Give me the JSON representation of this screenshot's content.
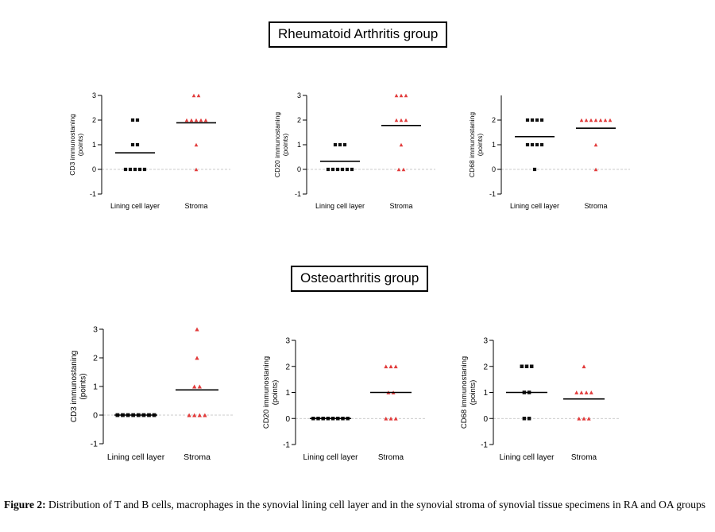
{
  "groups": {
    "ra_title": "Rheumatoid Arthritis group",
    "oa_title": "Osteoarthritis group"
  },
  "caption": {
    "label": "Figure 2:",
    "text": " Distribution of T and B cells, macrophages in the synovial lining cell layer and in the synovial stroma of synovial tissue specimens in RA and OA groups"
  },
  "colors": {
    "lining": "#111111",
    "stroma": "#e23b3b",
    "zero_line": "#bbbbbb"
  },
  "chart_data": [
    {
      "type": "scatter",
      "group": "Rheumatoid Arthritis group",
      "ylabel": "CD3 immunostaning (points)",
      "ylim": [
        -1,
        3
      ],
      "yticks": [
        -1,
        0,
        1,
        2,
        3
      ],
      "categories": [
        "Lining cell layer",
        "Stroma"
      ],
      "series": [
        {
          "name": "Lining cell layer",
          "marker": "square",
          "values": [
            0,
            0,
            0,
            0,
            0,
            1,
            1,
            2,
            2
          ],
          "mean": 0.67
        },
        {
          "name": "Stroma",
          "marker": "triangle",
          "values": [
            0,
            1,
            2,
            2,
            2,
            2,
            2,
            3,
            3
          ],
          "mean": 1.89
        }
      ]
    },
    {
      "type": "scatter",
      "group": "Rheumatoid Arthritis group",
      "ylabel": "CD20 immunostaning (points)",
      "ylim": [
        -1,
        3
      ],
      "yticks": [
        -1,
        0,
        1,
        2,
        3
      ],
      "categories": [
        "Lining cell layer",
        "Stroma"
      ],
      "series": [
        {
          "name": "Lining cell layer",
          "marker": "square",
          "values": [
            0,
            0,
            0,
            0,
            0,
            0,
            1,
            1,
            1
          ],
          "mean": 0.33
        },
        {
          "name": "Stroma",
          "marker": "triangle",
          "values": [
            0,
            0,
            1,
            2,
            2,
            2,
            3,
            3,
            3
          ],
          "mean": 1.78
        }
      ]
    },
    {
      "type": "scatter",
      "group": "Rheumatoid Arthritis group",
      "ylabel": "CD68 immunostaning (points)",
      "ylim": [
        -1,
        3
      ],
      "yticks": [
        -1,
        0,
        1,
        2
      ],
      "categories": [
        "Lining cell layer",
        "Stroma"
      ],
      "series": [
        {
          "name": "Lining cell layer",
          "marker": "square",
          "values": [
            0,
            1,
            1,
            1,
            1,
            2,
            2,
            2,
            2
          ],
          "mean": 1.33
        },
        {
          "name": "Stroma",
          "marker": "triangle",
          "values": [
            0,
            1,
            2,
            2,
            2,
            2,
            2,
            2,
            2
          ],
          "mean": 1.67
        }
      ]
    },
    {
      "type": "scatter",
      "group": "Osteoarthritis group",
      "ylabel": "CD3 immunostaning (points)",
      "ylim": [
        -1,
        3
      ],
      "yticks": [
        -1,
        0,
        1,
        2,
        3
      ],
      "categories": [
        "Lining cell layer",
        "Stroma"
      ],
      "series": [
        {
          "name": "Lining cell layer",
          "marker": "square",
          "values": [
            0,
            0,
            0,
            0,
            0,
            0,
            0,
            0
          ],
          "mean": 0
        },
        {
          "name": "Stroma",
          "marker": "triangle",
          "values": [
            0,
            0,
            0,
            0,
            1,
            1,
            2,
            3
          ],
          "mean": 0.88
        }
      ]
    },
    {
      "type": "scatter",
      "group": "Osteoarthritis group",
      "ylabel": "CD20 immunostaning (points)",
      "ylim": [
        -1,
        3
      ],
      "yticks": [
        -1,
        0,
        1,
        2,
        3
      ],
      "categories": [
        "Lining cell layer",
        "Stroma"
      ],
      "series": [
        {
          "name": "Lining cell layer",
          "marker": "square",
          "values": [
            0,
            0,
            0,
            0,
            0,
            0,
            0,
            0
          ],
          "mean": 0
        },
        {
          "name": "Stroma",
          "marker": "triangle",
          "values": [
            0,
            0,
            0,
            1,
            1,
            2,
            2,
            2
          ],
          "mean": 1
        }
      ]
    },
    {
      "type": "scatter",
      "group": "Osteoarthritis group",
      "ylabel": "CD68 immunostaning (points)",
      "ylim": [
        -1,
        3
      ],
      "yticks": [
        -1,
        0,
        1,
        2,
        3
      ],
      "categories": [
        "Lining cell layer",
        "Stroma"
      ],
      "series": [
        {
          "name": "Lining cell layer",
          "marker": "square",
          "values": [
            0,
            0,
            1,
            1,
            2,
            2,
            2
          ],
          "mean": 1
        },
        {
          "name": "Stroma",
          "marker": "triangle",
          "values": [
            0,
            0,
            0,
            1,
            1,
            1,
            1,
            2
          ],
          "mean": 0.75
        }
      ]
    }
  ]
}
